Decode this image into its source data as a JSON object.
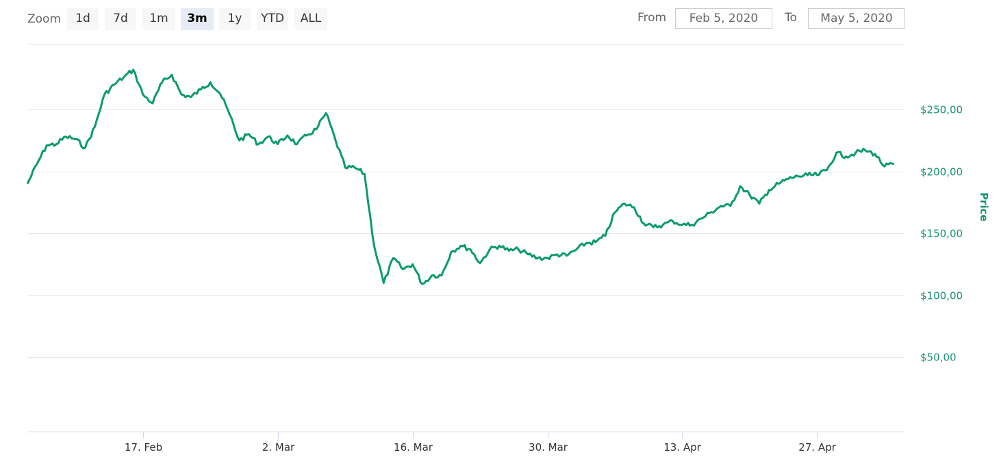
{
  "toolbar": {
    "zoom_label": "Zoom",
    "buttons": [
      "1d",
      "7d",
      "1m",
      "3m",
      "1y",
      "YTD",
      "ALL"
    ],
    "selected": "3m",
    "from_label": "From",
    "from_value": "Feb 5, 2020",
    "to_label": "To",
    "to_value": "May 5, 2020"
  },
  "chart_data": {
    "type": "line",
    "ylabel": "Price",
    "ylim": [
      -10,
      303
    ],
    "y_ticks": [
      50,
      100,
      150,
      200,
      250
    ],
    "y_tick_labels": [
      "$50,00",
      "$100,00",
      "$150,00",
      "$200,00",
      "$250,00"
    ],
    "x_ticks": [
      "2020-02-17",
      "2020-03-02",
      "2020-03-16",
      "2020-03-30",
      "2020-04-13",
      "2020-04-27"
    ],
    "x_tick_labels": [
      "17. Feb",
      "2. Mar",
      "16. Mar",
      "30. Mar",
      "13. Apr",
      "27. Apr"
    ],
    "xlim": [
      "2020-02-05",
      "2020-05-06"
    ],
    "grid": true,
    "colors": {
      "line": "#0a9a6e",
      "grid": "#e6e6e6",
      "axis": "#ccd6eb",
      "tick_y": "#149474"
    },
    "series": [
      {
        "x": [
          "2020-02-05",
          "2020-02-06",
          "2020-02-07",
          "2020-02-08",
          "2020-02-09",
          "2020-02-10",
          "2020-02-11",
          "2020-02-12",
          "2020-02-13",
          "2020-02-14",
          "2020-02-15",
          "2020-02-16",
          "2020-02-17",
          "2020-02-18",
          "2020-02-19",
          "2020-02-20",
          "2020-02-21",
          "2020-02-22",
          "2020-02-23",
          "2020-02-24",
          "2020-02-25",
          "2020-02-26",
          "2020-02-27",
          "2020-02-28",
          "2020-02-29",
          "2020-03-01",
          "2020-03-02",
          "2020-03-03",
          "2020-03-04",
          "2020-03-05",
          "2020-03-06",
          "2020-03-07",
          "2020-03-08",
          "2020-03-09",
          "2020-03-10",
          "2020-03-11",
          "2020-03-12",
          "2020-03-13",
          "2020-03-14",
          "2020-03-15",
          "2020-03-16",
          "2020-03-17",
          "2020-03-18",
          "2020-03-19",
          "2020-03-20",
          "2020-03-21",
          "2020-03-22",
          "2020-03-23",
          "2020-03-24",
          "2020-03-25",
          "2020-03-26",
          "2020-03-27",
          "2020-03-28",
          "2020-03-29",
          "2020-03-30",
          "2020-03-31",
          "2020-04-01",
          "2020-04-02",
          "2020-04-03",
          "2020-04-04",
          "2020-04-05",
          "2020-04-06",
          "2020-04-07",
          "2020-04-08",
          "2020-04-09",
          "2020-04-10",
          "2020-04-11",
          "2020-04-12",
          "2020-04-13",
          "2020-04-14",
          "2020-04-15",
          "2020-04-16",
          "2020-04-17",
          "2020-04-18",
          "2020-04-19",
          "2020-04-20",
          "2020-04-21",
          "2020-04-22",
          "2020-04-23",
          "2020-04-24",
          "2020-04-25",
          "2020-04-26",
          "2020-04-27",
          "2020-04-28",
          "2020-04-29",
          "2020-04-30",
          "2020-05-01",
          "2020-05-02",
          "2020-05-03",
          "2020-05-04",
          "2020-05-05"
        ],
        "y": [
          190,
          206,
          221,
          222,
          228,
          226,
          219,
          236,
          262,
          270,
          276,
          282,
          262,
          255,
          272,
          278,
          262,
          260,
          266,
          272,
          263,
          246,
          225,
          230,
          222,
          228,
          222,
          229,
          222,
          229,
          234,
          247,
          225,
          203,
          203,
          198,
          140,
          110,
          130,
          121,
          125,
          109,
          116,
          116,
          135,
          140,
          137,
          126,
          137,
          140,
          136,
          137,
          133,
          130,
          130,
          133,
          132,
          137,
          142,
          143,
          148,
          167,
          174,
          171,
          158,
          155,
          157,
          160,
          157,
          157,
          162,
          167,
          172,
          172,
          188,
          181,
          174,
          185,
          190,
          194,
          196,
          197,
          197,
          201,
          215,
          212,
          215,
          217,
          214,
          204,
          206
        ]
      }
    ]
  }
}
